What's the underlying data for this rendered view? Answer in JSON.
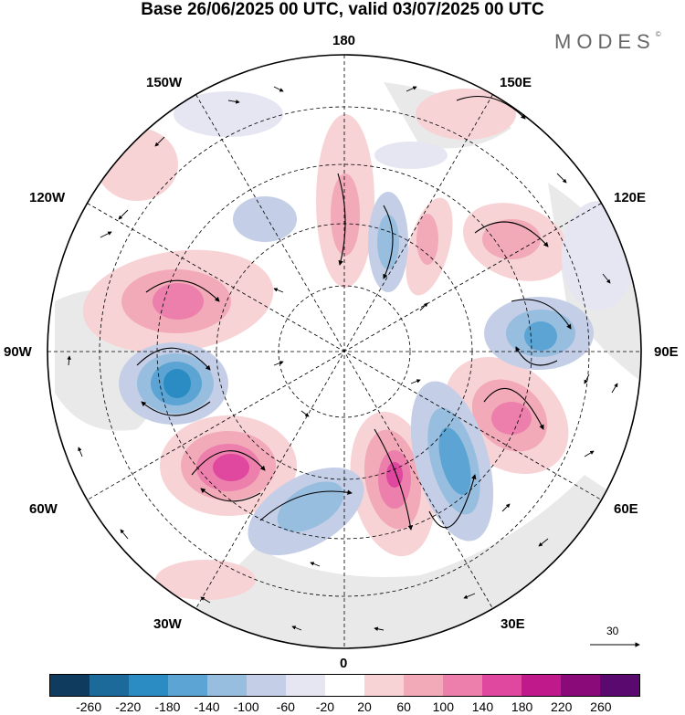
{
  "title": "Base 26/06/2025 00 UTC, valid 03/07/2025 00 UTC",
  "brand": "MODES",
  "brand_mark": "©",
  "longitude_labels": {
    "top": "180",
    "bottom": "0",
    "left": "90W",
    "right": "90E",
    "upper_left_1": "150W",
    "upper_left_2": "120W",
    "lower_left_1": "60W",
    "lower_left_2": "30W",
    "upper_right_1": "150E",
    "upper_right_2": "120E",
    "lower_right_1": "60E",
    "lower_right_2": "30E"
  },
  "reference_vector": "30",
  "colorbar": {
    "colors": [
      "#0e3b5e",
      "#1b6a9a",
      "#2a8cc2",
      "#5ba4d3",
      "#97bddf",
      "#c4cfe7",
      "#e6e6f2",
      "#ffffff",
      "#f8d3d6",
      "#f2aab9",
      "#ec7fab",
      "#e0479f",
      "#c0198c",
      "#8b0a7a",
      "#5a0a6e"
    ],
    "tick_labels": [
      "-260",
      "-220",
      "-180",
      "-140",
      "-100",
      "-60",
      "-20",
      "20",
      "60",
      "100",
      "140",
      "180",
      "220",
      "260"
    ]
  },
  "legend_colors": {
    "land_gray": "#e9e9e9",
    "line": "#000000"
  }
}
